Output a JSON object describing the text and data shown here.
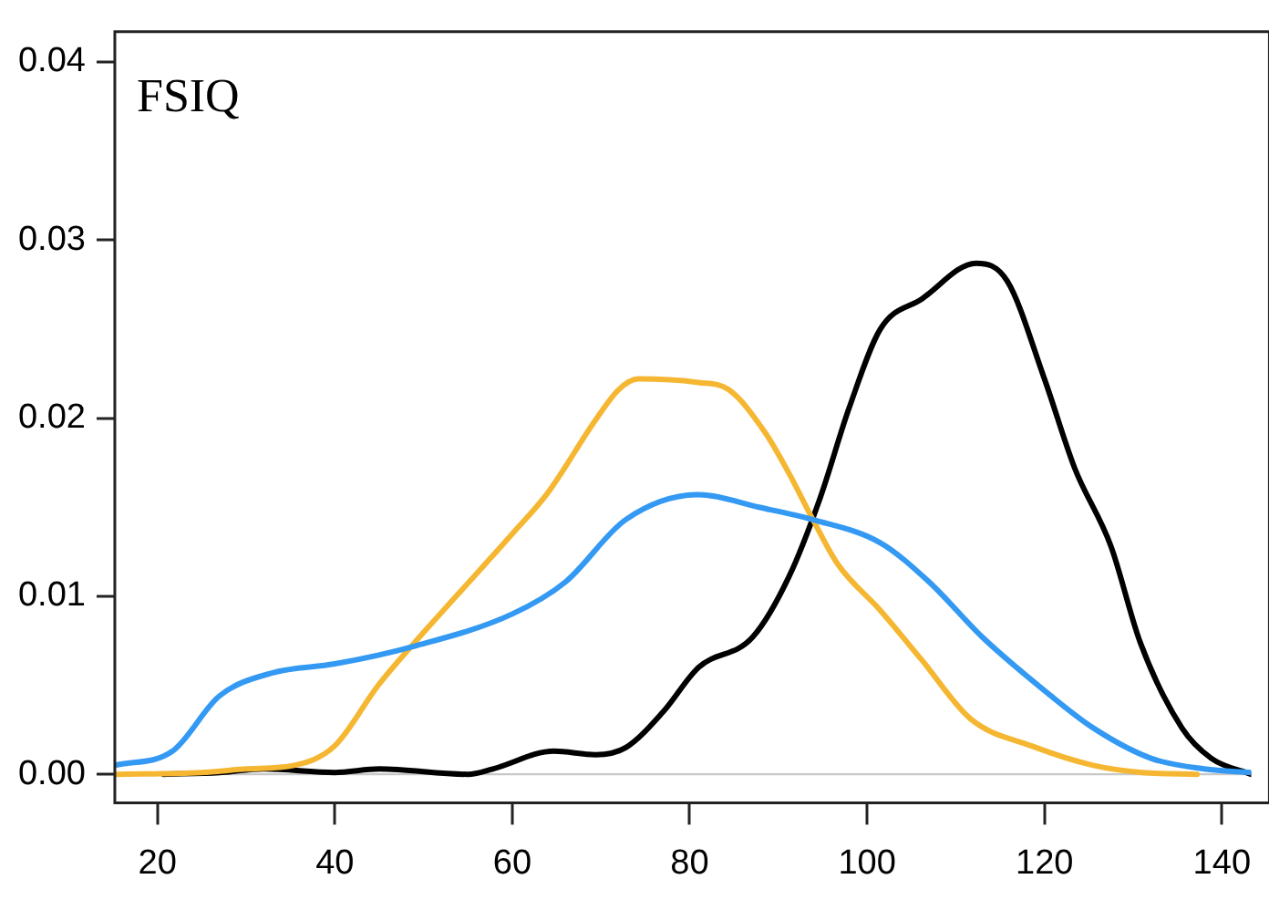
{
  "chart_data": {
    "type": "line",
    "annotations": [
      "FSIQ"
    ],
    "xlim": [
      15.2,
      143.3
    ],
    "xticks": [
      20,
      40,
      60,
      80,
      100,
      120,
      140
    ],
    "ylim": [
      -0.0016,
      0.0417
    ],
    "yticks": [
      {
        "value": 0,
        "label": "0.00"
      },
      {
        "value": 0.01,
        "label": "0.01"
      },
      {
        "value": 0.02,
        "label": "0.02"
      },
      {
        "value": 0.03,
        "label": "0.03"
      },
      {
        "value": 0.04,
        "label": "0.04"
      }
    ],
    "grid": false,
    "legend": false,
    "marker": "none",
    "line_style": "solid",
    "ref_lines": [
      {
        "axis": "y",
        "value": 0,
        "color": "#c8c8c8"
      }
    ],
    "series": [
      {
        "color": "#3399f3",
        "x": [
          15.2,
          21.7,
          27,
          33,
          40,
          49,
          60,
          66,
          72.8,
          81,
          87.8,
          93.9,
          101.5,
          107,
          113,
          120,
          125.5,
          132,
          138,
          143.3
        ],
        "values": [
          0.0005,
          0.0013,
          0.0044,
          0.0057,
          0.0062,
          0.0072,
          0.009,
          0.0108,
          0.0143,
          0.0157,
          0.015,
          0.0143,
          0.013,
          0.0108,
          0.0077,
          0.0047,
          0.0026,
          0.0009,
          0.0003,
          0.0001
        ]
      },
      {
        "color": "#f5b731",
        "x": [
          15.2,
          25,
          30,
          35.4,
          40,
          44.9,
          49,
          53.5,
          60,
          64,
          69.4,
          72,
          74.2,
          81,
          84.4,
          88.5,
          91.2,
          93.9,
          96.7,
          101.5,
          106.2,
          111.7,
          118.5,
          125.5,
          131,
          137.2
        ],
        "values": [
          0,
          0.0001,
          0.0003,
          0.0005,
          0.0016,
          0.005,
          0.0074,
          0.0099,
          0.0135,
          0.0158,
          0.0199,
          0.0216,
          0.0222,
          0.022,
          0.0216,
          0.0192,
          0.0169,
          0.0143,
          0.0118,
          0.0092,
          0.0064,
          0.0031,
          0.0016,
          0.0005,
          0.0001,
          0
        ]
      },
      {
        "color": "#000000",
        "x": [
          20.7,
          27,
          32,
          40,
          45,
          55,
          57.8,
          64.7,
          69.4,
          72.8,
          77,
          81,
          87.1,
          91.2,
          94.7,
          98,
          101.5,
          106.2,
          112.3,
          115.8,
          120,
          123.4,
          127.5,
          130.8,
          135.5,
          138.8,
          143.3
        ],
        "values": [
          0,
          0.0001,
          0.0003,
          0.0001,
          0.0003,
          0,
          0.0003,
          0.0013,
          0.0011,
          0.0015,
          0.0035,
          0.006,
          0.0077,
          0.0111,
          0.0155,
          0.0206,
          0.025,
          0.0267,
          0.0287,
          0.0277,
          0.0222,
          0.0172,
          0.0128,
          0.0074,
          0.0026,
          0.0009,
          0
        ]
      }
    ]
  }
}
